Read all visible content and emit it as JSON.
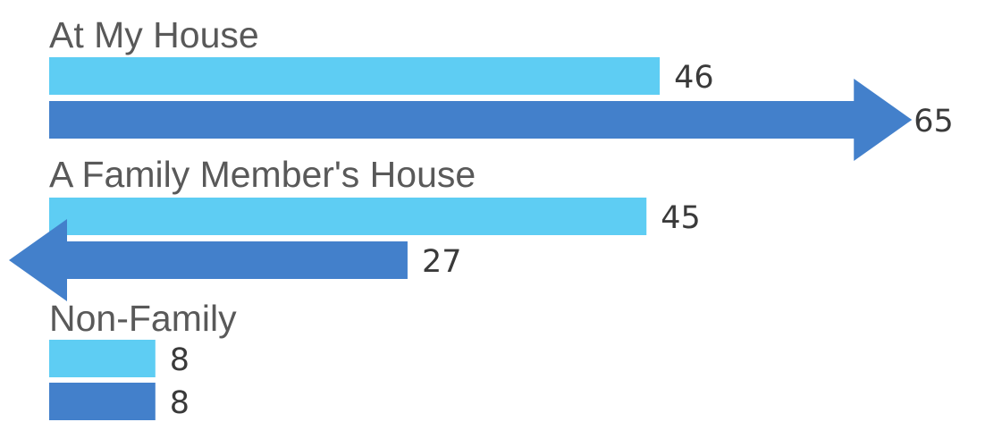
{
  "colors": {
    "series_1": "#5ecdf3",
    "series_2": "#4380cb",
    "category_text": "#595959",
    "value_text": "#3a3a3a",
    "background": "#ffffff"
  },
  "chart_data": {
    "type": "bar",
    "orientation": "horizontal",
    "categories": [
      "At My House",
      "A Family Member's House",
      "Non-Family"
    ],
    "series": [
      {
        "values": [
          46,
          45,
          8
        ]
      },
      {
        "values": [
          65,
          27,
          8
        ],
        "arrows": [
          "right",
          "left",
          "none"
        ]
      }
    ],
    "xlim": [
      0,
      65
    ],
    "grid": false,
    "legend": "none",
    "data_labels": true
  }
}
